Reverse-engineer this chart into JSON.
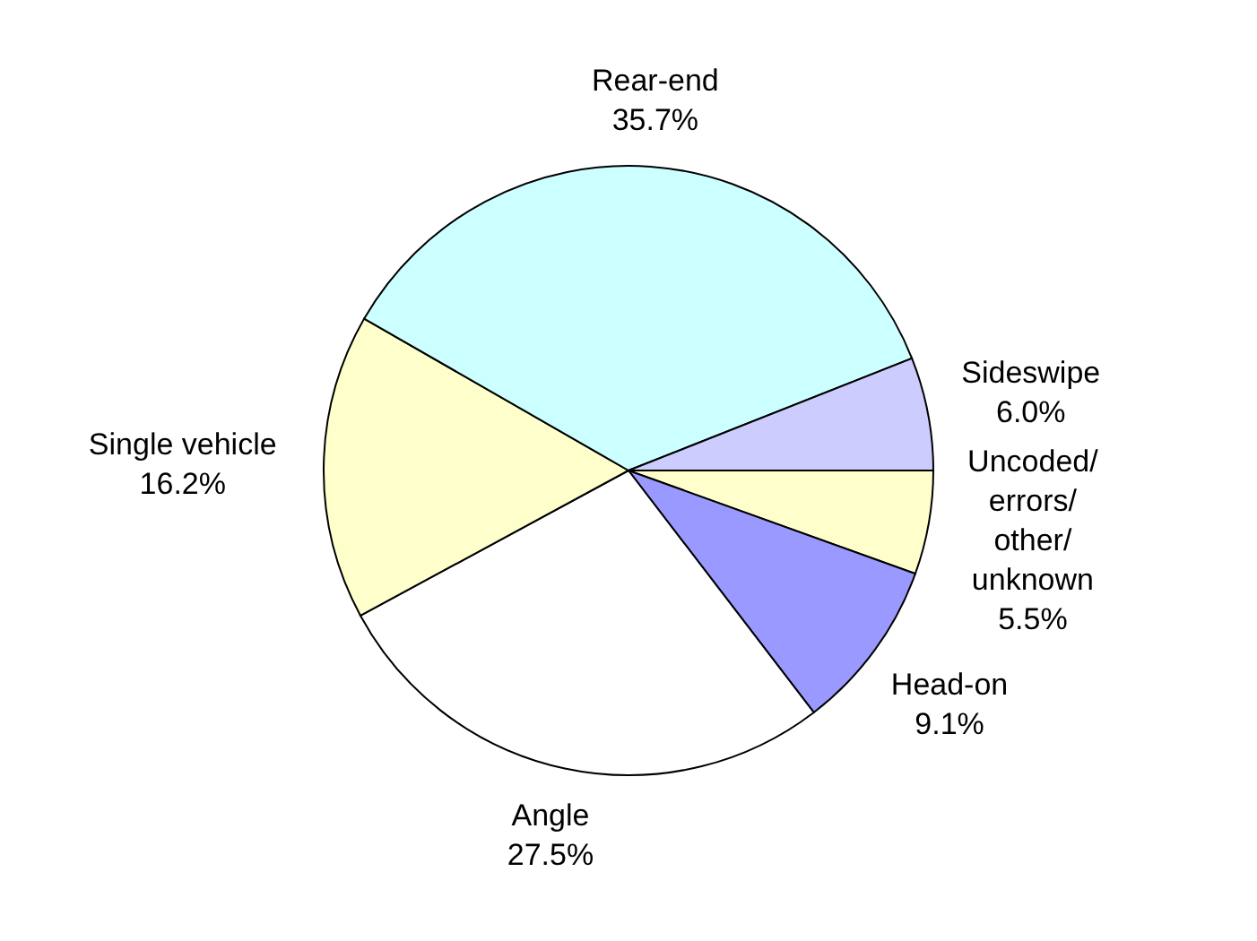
{
  "chart_data": {
    "type": "pie",
    "categories": [
      "Uncoded/errors/other/unknown",
      "Head-on",
      "Angle",
      "Single vehicle",
      "Rear-end",
      "Sideswipe"
    ],
    "values": [
      5.5,
      9.1,
      27.5,
      16.2,
      35.7,
      6.0
    ],
    "colors": [
      "#ffffcc",
      "#9999ff",
      "#ffffff",
      "#ffffcc",
      "#ccffff",
      "#ccccff"
    ],
    "value_labels": [
      "5.5%",
      "9.1%",
      "27.5%",
      "16.2%",
      "35.7%",
      "6.0%"
    ]
  }
}
